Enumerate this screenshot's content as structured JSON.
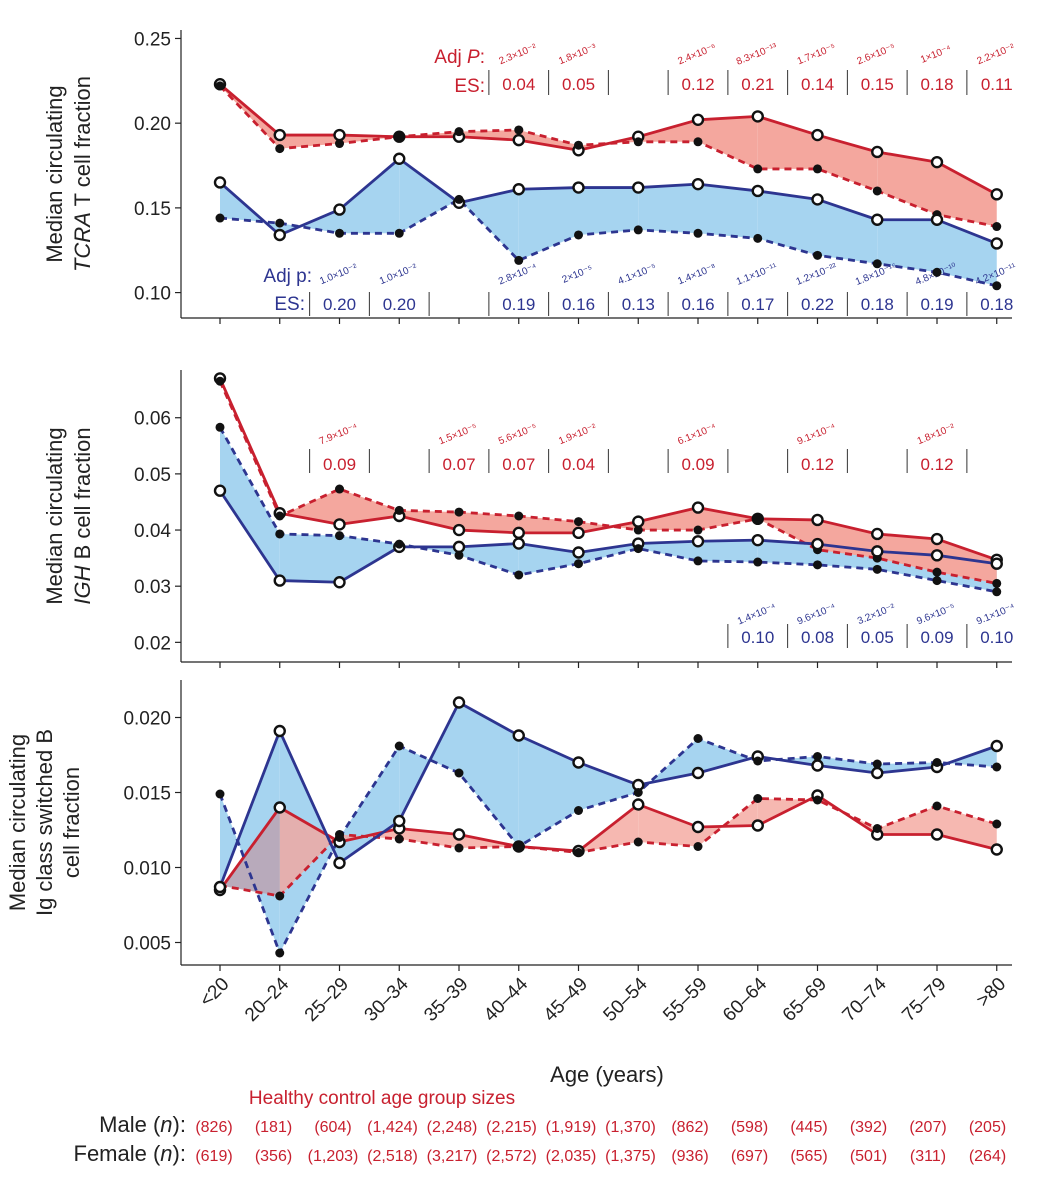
{
  "colors": {
    "male": "#c8202f",
    "female": "#2d3590",
    "male_fill": "#f4a79e",
    "female_fill": "#a6d4f0",
    "overlap_fill": "#b2aabd"
  },
  "x_axis": {
    "title": "Age (years)",
    "categories": [
      "<20",
      "20–24",
      "25–29",
      "30–34",
      "35–39",
      "40–44",
      "45–49",
      "50–54",
      "55–59",
      "60–64",
      "65–69",
      "70–74",
      "75–79",
      ">80"
    ]
  },
  "chart_data": [
    {
      "type": "line",
      "id": "tcra",
      "ylabel_line1": "Median circulating",
      "ylabel_line2_italic": "TCRA",
      "ylabel_line2_rest": " T cell fraction",
      "ylim": [
        0.085,
        0.255
      ],
      "yticks": [
        0.1,
        0.15,
        0.2,
        0.25
      ],
      "ytick_labels": [
        "0.10",
        "0.15",
        "0.20",
        "0.25"
      ],
      "series": [
        {
          "name": "Male hollow",
          "group": "male",
          "style": "solid",
          "marker": "hollow",
          "values": [
            0.223,
            0.193,
            0.193,
            0.192,
            0.192,
            0.19,
            0.184,
            0.192,
            0.202,
            0.204,
            0.193,
            0.183,
            0.177,
            0.158
          ]
        },
        {
          "name": "Male filled",
          "group": "male",
          "style": "dashed",
          "marker": "filled",
          "values": [
            0.222,
            0.185,
            0.188,
            0.192,
            0.195,
            0.196,
            0.187,
            0.189,
            0.189,
            0.173,
            0.173,
            0.16,
            0.146,
            0.139
          ]
        },
        {
          "name": "Female hollow",
          "group": "female",
          "style": "solid",
          "marker": "hollow",
          "values": [
            0.165,
            0.134,
            0.149,
            0.179,
            0.153,
            0.161,
            0.162,
            0.162,
            0.164,
            0.16,
            0.155,
            0.143,
            0.143,
            0.129
          ]
        },
        {
          "name": "Female filled",
          "group": "female",
          "style": "dashed",
          "marker": "filled",
          "values": [
            0.144,
            0.141,
            0.135,
            0.135,
            0.155,
            0.119,
            0.134,
            0.137,
            0.135,
            0.132,
            0.122,
            0.117,
            0.112,
            0.104
          ]
        }
      ],
      "annotations": [
        {
          "group": "male",
          "position": "top",
          "head_p": "Adj ",
          "head_p_italic": "P",
          "head_p_end": ":",
          "head_es": "ES:",
          "items": [
            {
              "index": 5,
              "p": "2.3×10⁻²",
              "es": "0.04"
            },
            {
              "index": 6,
              "p": "1.8×10⁻³",
              "es": "0.05"
            },
            {
              "index": 8,
              "p": "2.4×10⁻⁶",
              "es": "0.12"
            },
            {
              "index": 9,
              "p": "8.3×10⁻¹³",
              "es": "0.21"
            },
            {
              "index": 10,
              "p": "1.7×10⁻⁵",
              "es": "0.14"
            },
            {
              "index": 11,
              "p": "2.6×10⁻⁵",
              "es": "0.15"
            },
            {
              "index": 12,
              "p": "1×10⁻⁴",
              "es": "0.18"
            },
            {
              "index": 13,
              "p": "2.2×10⁻²",
              "es": "0.11"
            }
          ]
        },
        {
          "group": "female",
          "position": "bottom",
          "head_p": "Adj p:",
          "head_es": "ES:",
          "items": [
            {
              "index": 2,
              "p": "1.0×10⁻²",
              "es": "0.20"
            },
            {
              "index": 3,
              "p": "1.0×10⁻²",
              "es": "0.20"
            },
            {
              "index": 5,
              "p": "2.8×10⁻⁴",
              "es": "0.19"
            },
            {
              "index": 6,
              "p": "2×10⁻⁵",
              "es": "0.16"
            },
            {
              "index": 7,
              "p": "4.1×10⁻⁵",
              "es": "0.13"
            },
            {
              "index": 8,
              "p": "1.4×10⁻⁸",
              "es": "0.16"
            },
            {
              "index": 9,
              "p": "1.1×10⁻¹¹",
              "es": "0.17"
            },
            {
              "index": 10,
              "p": "1.2×10⁻²²",
              "es": "0.22"
            },
            {
              "index": 11,
              "p": "1.8×10⁻¹⁶",
              "es": "0.18"
            },
            {
              "index": 12,
              "p": "4.8×10⁻¹⁰",
              "es": "0.19"
            },
            {
              "index": 13,
              "p": "4.2×10⁻¹¹",
              "es": "0.18"
            }
          ]
        }
      ]
    },
    {
      "type": "line",
      "id": "igh",
      "ylabel_line1": "Median circulating",
      "ylabel_line2_italic": "IGH",
      "ylabel_line2_rest": " B cell fraction",
      "ylim": [
        0.0165,
        0.0685
      ],
      "yticks": [
        0.02,
        0.03,
        0.04,
        0.05,
        0.06
      ],
      "ytick_labels": [
        "0.02",
        "0.03",
        "0.04",
        "0.05",
        "0.06"
      ],
      "series": [
        {
          "name": "Male hollow",
          "group": "male",
          "style": "solid",
          "marker": "hollow",
          "values": [
            0.067,
            0.043,
            0.041,
            0.0425,
            0.04,
            0.0395,
            0.0395,
            0.0415,
            0.044,
            0.042,
            0.0418,
            0.0393,
            0.0384,
            0.0347
          ]
        },
        {
          "name": "Male filled",
          "group": "male",
          "style": "dashed",
          "marker": "filled",
          "values": [
            0.0665,
            0.0425,
            0.0473,
            0.0435,
            0.0432,
            0.0425,
            0.0415,
            0.04,
            0.04,
            0.042,
            0.0365,
            0.035,
            0.0325,
            0.0305
          ]
        },
        {
          "name": "Female hollow",
          "group": "female",
          "style": "solid",
          "marker": "hollow",
          "values": [
            0.047,
            0.031,
            0.0307,
            0.037,
            0.037,
            0.0376,
            0.036,
            0.0376,
            0.038,
            0.0382,
            0.0375,
            0.0362,
            0.0355,
            0.034
          ]
        },
        {
          "name": "Female filled",
          "group": "female",
          "style": "dashed",
          "marker": "filled",
          "values": [
            0.0583,
            0.0393,
            0.039,
            0.0375,
            0.0355,
            0.032,
            0.034,
            0.0367,
            0.0345,
            0.0343,
            0.0338,
            0.033,
            0.031,
            0.029
          ]
        }
      ],
      "annotations": [
        {
          "group": "male",
          "position": "top",
          "items": [
            {
              "index": 2,
              "p": "7.9×10⁻⁴",
              "es": "0.09"
            },
            {
              "index": 4,
              "p": "1.5×10⁻⁵",
              "es": "0.07"
            },
            {
              "index": 5,
              "p": "5.6×10⁻⁵",
              "es": "0.07"
            },
            {
              "index": 6,
              "p": "1.9×10⁻²",
              "es": "0.04"
            },
            {
              "index": 8,
              "p": "6.1×10⁻⁴",
              "es": "0.09"
            },
            {
              "index": 10,
              "p": "9.1×10⁻⁴",
              "es": "0.12"
            },
            {
              "index": 12,
              "p": "1.8×10⁻²",
              "es": "0.12"
            }
          ]
        },
        {
          "group": "female",
          "position": "bottom",
          "items": [
            {
              "index": 9,
              "p": "1.4×10⁻⁴",
              "es": "0.10"
            },
            {
              "index": 10,
              "p": "9.6×10⁻⁴",
              "es": "0.08"
            },
            {
              "index": 11,
              "p": "3.2×10⁻²",
              "es": "0.05"
            },
            {
              "index": 12,
              "p": "9.6×10⁻⁵",
              "es": "0.09"
            },
            {
              "index": 13,
              "p": "9.1×10⁻⁴",
              "es": "0.10"
            }
          ]
        }
      ]
    },
    {
      "type": "line",
      "id": "igcs",
      "ylabel_line1": "Median circulating",
      "ylabel_line2": "Ig class switched B",
      "ylabel_line3": "cell fraction",
      "ylim": [
        0.0035,
        0.0225
      ],
      "yticks": [
        0.005,
        0.01,
        0.015,
        0.02
      ],
      "ytick_labels": [
        "0.005",
        "0.010",
        "0.015",
        "0.020"
      ],
      "series": [
        {
          "name": "Male hollow",
          "group": "male",
          "style": "solid",
          "marker": "hollow",
          "values": [
            0.0085,
            0.014,
            0.0117,
            0.0126,
            0.0122,
            0.0114,
            0.0111,
            0.0142,
            0.0127,
            0.0128,
            0.0148,
            0.0122,
            0.0122,
            0.0112
          ]
        },
        {
          "name": "Male filled",
          "group": "male",
          "style": "dashed",
          "marker": "filled",
          "values": [
            0.0088,
            0.0081,
            0.0122,
            0.0119,
            0.0113,
            0.0114,
            0.011,
            0.0117,
            0.0114,
            0.0146,
            0.0145,
            0.0126,
            0.0141,
            0.0129
          ]
        },
        {
          "name": "Female hollow",
          "group": "female",
          "style": "solid",
          "marker": "hollow",
          "values": [
            0.0087,
            0.0191,
            0.0103,
            0.0131,
            0.021,
            0.0188,
            0.017,
            0.0155,
            0.0163,
            0.0174,
            0.0168,
            0.0163,
            0.0167,
            0.0181
          ]
        },
        {
          "name": "Female filled",
          "group": "female",
          "style": "dashed",
          "marker": "filled",
          "values": [
            0.0149,
            0.0043,
            0.012,
            0.0181,
            0.0163,
            0.0114,
            0.0138,
            0.015,
            0.0186,
            0.0171,
            0.0174,
            0.0169,
            0.017,
            0.0167
          ]
        }
      ]
    }
  ],
  "group_sizes": {
    "title": "Healthy control age group sizes",
    "male_label_pre": "Male (",
    "male_label_n": "n",
    "male_label_post": "):",
    "female_label_pre": "Female (",
    "female_label_n": "n",
    "female_label_post": "):",
    "male": [
      "(826)",
      "(181)",
      "(604)",
      "(1,424)",
      "(2,248)",
      "(2,215)",
      "(1,919)",
      "(1,370)",
      "(862)",
      "(598)",
      "(445)",
      "(392)",
      "(207)",
      "(205)"
    ],
    "female": [
      "(619)",
      "(356)",
      "(1,203)",
      "(2,518)",
      "(3,217)",
      "(2,572)",
      "(2,035)",
      "(1,375)",
      "(936)",
      "(697)",
      "(565)",
      "(501)",
      "(311)",
      "(264)"
    ]
  }
}
